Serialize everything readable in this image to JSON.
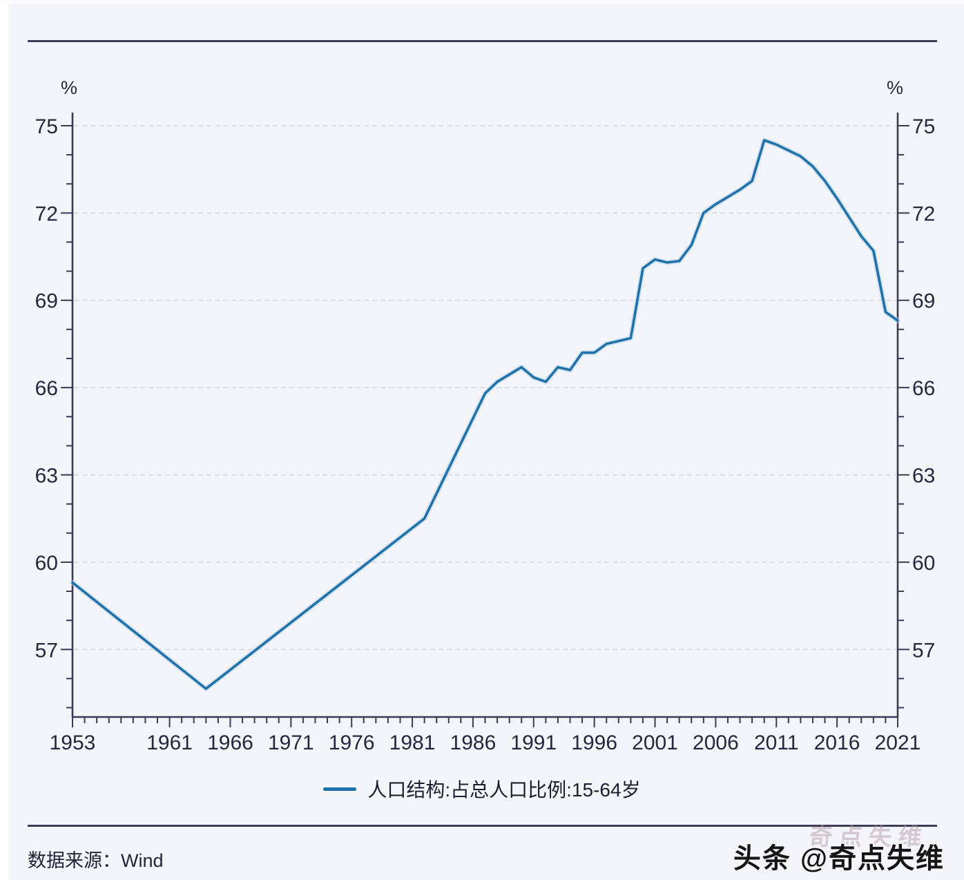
{
  "chart": {
    "percent_left": "%",
    "percent_right": "%"
  },
  "legend": {
    "label": "人口结构:占总人口比例:15-64岁",
    "color": "#1f71a9"
  },
  "footer": {
    "source_label": "数据来源：Wind",
    "watermark": "头条 @奇点失维",
    "watermark_ghost": "奇点失维"
  },
  "chart_data": {
    "type": "line",
    "title": "",
    "unit": "%",
    "grid": "horizontal-dashed",
    "legend_position": "bottom-center",
    "x_axis": {
      "min": 1953,
      "max": 2021,
      "major_ticks": [
        1953,
        1961,
        1966,
        1971,
        1976,
        1981,
        1986,
        1991,
        1996,
        2001,
        2006,
        2011,
        2016,
        2021
      ],
      "minor_tick_every": 1
    },
    "y_axis": {
      "unit": "%",
      "drawn_min": 54.68,
      "drawn_max": 75.45,
      "major_ticks": [
        75,
        72,
        69,
        66,
        63,
        60,
        57
      ],
      "minor_tick_every": 1
    },
    "series": [
      {
        "name": "人口结构:占总人口比例:15-64岁",
        "color": "#1f71a9",
        "points": [
          [
            1953,
            59.3
          ],
          [
            1964,
            55.65
          ],
          [
            1982,
            61.5
          ],
          [
            1987,
            65.8
          ],
          [
            1988,
            66.2
          ],
          [
            1989,
            66.45
          ],
          [
            1990,
            66.7
          ],
          [
            1991,
            66.35
          ],
          [
            1992,
            66.2
          ],
          [
            1993,
            66.7
          ],
          [
            1994,
            66.6
          ],
          [
            1995,
            67.2
          ],
          [
            1996,
            67.2
          ],
          [
            1997,
            67.5
          ],
          [
            1998,
            67.6
          ],
          [
            1999,
            67.7
          ],
          [
            2000,
            70.1
          ],
          [
            2001,
            70.4
          ],
          [
            2002,
            70.3
          ],
          [
            2003,
            70.35
          ],
          [
            2004,
            70.9
          ],
          [
            2005,
            72.0
          ],
          [
            2006,
            72.3
          ],
          [
            2007,
            72.55
          ],
          [
            2008,
            72.8
          ],
          [
            2009,
            73.1
          ],
          [
            2010,
            74.5
          ],
          [
            2011,
            74.35
          ],
          [
            2012,
            74.15
          ],
          [
            2013,
            73.95
          ],
          [
            2014,
            73.6
          ],
          [
            2015,
            73.1
          ],
          [
            2016,
            72.5
          ],
          [
            2017,
            71.85
          ],
          [
            2018,
            71.2
          ],
          [
            2019,
            70.7
          ],
          [
            2020,
            68.6
          ],
          [
            2021,
            68.3
          ]
        ]
      }
    ]
  }
}
